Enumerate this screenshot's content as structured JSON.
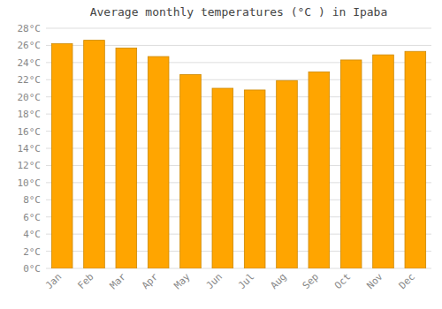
{
  "chart_data": {
    "type": "bar",
    "title": "Average monthly temperatures (°C ) in Ipaba",
    "categories": [
      "Jan",
      "Feb",
      "Mar",
      "Apr",
      "May",
      "Jun",
      "Jul",
      "Aug",
      "Sep",
      "Oct",
      "Nov",
      "Dec"
    ],
    "values": [
      26.2,
      26.6,
      25.7,
      24.7,
      22.6,
      21.0,
      20.8,
      21.9,
      22.9,
      24.3,
      24.9,
      25.3
    ],
    "color": "#FFA500",
    "ylim": [
      0,
      28
    ],
    "yticks": [
      {
        "value": 0,
        "label": "0°C"
      },
      {
        "value": 2,
        "label": "2°C"
      },
      {
        "value": 4,
        "label": "4°C"
      },
      {
        "value": 6,
        "label": "6°C"
      },
      {
        "value": 8,
        "label": "8°C"
      },
      {
        "value": 10,
        "label": "10°C"
      },
      {
        "value": 12,
        "label": "12°C"
      },
      {
        "value": 14,
        "label": "14°C"
      },
      {
        "value": 16,
        "label": "16°C"
      },
      {
        "value": 18,
        "label": "18°C"
      },
      {
        "value": 20,
        "label": "20°C"
      },
      {
        "value": 22,
        "label": "22°C"
      },
      {
        "value": 24,
        "label": "24°C"
      },
      {
        "value": 26,
        "label": "26°C"
      },
      {
        "value": 28,
        "label": "28°C"
      }
    ],
    "grid": true
  }
}
